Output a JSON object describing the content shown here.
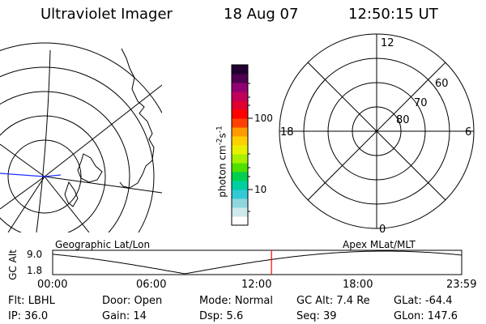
{
  "header": {
    "title": "Ultraviolet Imager",
    "date": "18 Aug 07",
    "time": "12:50:15 UT"
  },
  "colorbar": {
    "label": "photon cm",
    "label_sup1": "-2",
    "label_s": "s",
    "label_sup2": "-1",
    "ticks": [
      "100",
      "10"
    ],
    "colors": [
      "#ffffff",
      "#cfe8ec",
      "#8fd7de",
      "#35c9d6",
      "#00d0a0",
      "#00d050",
      "#4ee000",
      "#a8f000",
      "#e8f000",
      "#ffd000",
      "#ff9a00",
      "#ff4000",
      "#ff0000",
      "#e00030",
      "#c0005a",
      "#900070",
      "#500050",
      "#200030"
    ]
  },
  "polar_plot": {
    "mlt_labels": [
      "12",
      "18",
      "6",
      "0"
    ],
    "lat_labels": [
      "60",
      "70",
      "80"
    ]
  },
  "timeline": {
    "left_title": "Geographic Lat/Lon",
    "right_title": "Apex MLat/MLT",
    "axis_label": "GC Alt",
    "y_labels": [
      "9.0",
      "1.8"
    ],
    "x_labels": [
      "00:00",
      "06:00",
      "12:00",
      "18:00",
      "23:59"
    ],
    "current_time_hours": 12.84,
    "marker_color": "#ff0000"
  },
  "info": {
    "filter": "Flt: LBHL",
    "ip": "IP: 36.0",
    "door": "Door: Open",
    "gain": "Gain: 14",
    "mode": "Mode: Normal",
    "dsp": "Dsp:     5.6",
    "gc_alt": "GC Alt: 7.4 Re",
    "seq": "Seq: 39",
    "glat": "GLat: -64.4",
    "glon": "GLon: 147.6"
  }
}
